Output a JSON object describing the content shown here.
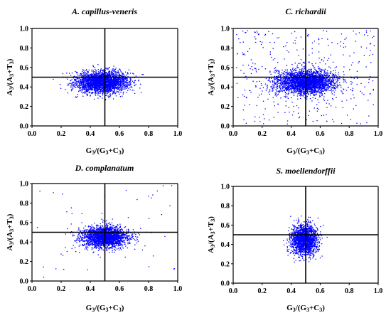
{
  "chart_data": [
    {
      "type": "scatter",
      "title": "A. capillus-veneris",
      "xlabel": {
        "main": "G",
        "sub1": "3",
        "mid": "/(G",
        "sub2": "3",
        "plus": "+C",
        "sub3": "3",
        "end": ")"
      },
      "ylabel": {
        "main": "A",
        "sub1": "3",
        "mid": "/(A",
        "sub2": "3",
        "plus": "+T",
        "sub3": "3",
        "end": ")"
      },
      "xlim": [
        0,
        1
      ],
      "ylim": [
        0,
        1
      ],
      "xticks": [
        "0.0",
        "0.2",
        "0.4",
        "0.6",
        "0.8",
        "1.0"
      ],
      "yticks": [
        "0.0",
        "0.2",
        "0.4",
        "0.6",
        "0.8",
        "1.0"
      ],
      "reference_lines": {
        "x": 0.5,
        "y": 0.5
      },
      "point_color": "#0000ff",
      "cluster": {
        "center_x": 0.48,
        "center_y": 0.45,
        "spread_x": 0.09,
        "spread_y": 0.055,
        "n_points": 2600,
        "scatter_fraction": 0.0
      }
    },
    {
      "type": "scatter",
      "title": "C. richardii",
      "xlabel": {
        "main": "G",
        "sub1": "3",
        "mid": "/(G",
        "sub2": "3",
        "plus": "+C",
        "sub3": "3",
        "end": ")"
      },
      "ylabel": {
        "main": "A",
        "sub1": "3",
        "mid": "/(A",
        "sub2": "3",
        "plus": "+T",
        "sub3": "3",
        "end": ")"
      },
      "xlim": [
        0,
        1
      ],
      "ylim": [
        0,
        1
      ],
      "xticks": [
        "0.0",
        "0.2",
        "0.4",
        "0.6",
        "0.8",
        "1.0"
      ],
      "yticks": [
        "0.0",
        "0.2",
        "0.4",
        "0.6",
        "0.8",
        "1.0"
      ],
      "reference_lines": {
        "x": 0.5,
        "y": 0.5
      },
      "point_color": "#0000ff",
      "cluster": {
        "center_x": 0.5,
        "center_y": 0.45,
        "spread_x": 0.1,
        "spread_y": 0.06,
        "n_points": 3000,
        "scatter_fraction": 0.12
      }
    },
    {
      "type": "scatter",
      "title": "D. complanatum",
      "xlabel": {
        "main": "G",
        "sub1": "3",
        "mid": "/(G",
        "sub2": "3",
        "plus": "+C",
        "sub3": "3",
        "end": ")"
      },
      "ylabel": {
        "main": "A",
        "sub1": "3",
        "mid": "/(A",
        "sub2": "3",
        "plus": "+T",
        "sub3": "3",
        "end": ")"
      },
      "xlim": [
        0,
        1
      ],
      "ylim": [
        0,
        1
      ],
      "xticks": [
        "0.0",
        "0.2",
        "0.4",
        "0.6",
        "0.8",
        "1.0"
      ],
      "yticks": [
        "0.0",
        "0.2",
        "0.4",
        "0.6",
        "0.8",
        "1.0"
      ],
      "reference_lines": {
        "x": 0.5,
        "y": 0.5
      },
      "point_color": "#0000ff",
      "cluster": {
        "center_x": 0.5,
        "center_y": 0.45,
        "spread_x": 0.08,
        "spread_y": 0.055,
        "n_points": 2200,
        "scatter_fraction": 0.02
      }
    },
    {
      "type": "scatter",
      "title": "S. moellendorffii",
      "xlabel": {
        "main": "G",
        "sub1": "3",
        "mid": "/(G",
        "sub2": "3",
        "plus": "+C",
        "sub3": "3",
        "end": ")"
      },
      "ylabel": {
        "main": "A",
        "sub1": "3",
        "mid": "/(A",
        "sub2": "3",
        "plus": "+T",
        "sub3": "3",
        "end": ")"
      },
      "xlim": [
        0,
        1
      ],
      "ylim": [
        0,
        1
      ],
      "xticks": [
        "0.0",
        "0.2",
        "0.4",
        "0.6",
        "0.8",
        "1.0"
      ],
      "yticks": [
        "0.0",
        "0.2",
        "0.4",
        "0.6",
        "0.8",
        "1.0"
      ],
      "reference_lines": {
        "x": 0.5,
        "y": 0.5
      },
      "point_color": "#0000ff",
      "cluster": {
        "center_x": 0.49,
        "center_y": 0.45,
        "spread_x": 0.045,
        "spread_y": 0.08,
        "n_points": 1700,
        "scatter_fraction": 0.0
      }
    }
  ]
}
